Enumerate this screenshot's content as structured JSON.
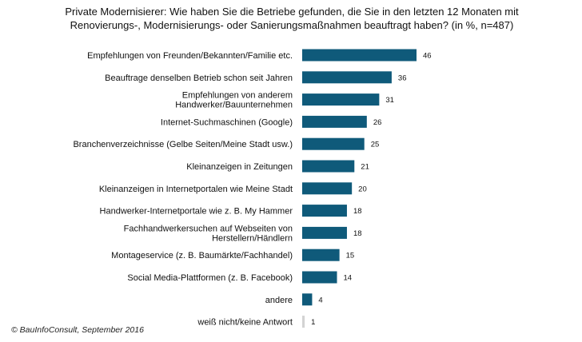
{
  "chart_data": {
    "type": "bar",
    "orientation": "horizontal",
    "title_lines": [
      "Private Modernisierer:  Wie haben  Sie die Betriebe gefunden,  die Sie in den letzten  12 Monaten mit",
      "Renovierungs-,  Modernisierungs-  oder Sanierungsmaßnahmen  beauftragt haben? (in %, n=487)"
    ],
    "categories": [
      [
        "Empfehlungen von Freunden/Bekannten/Familie etc."
      ],
      [
        "Beauftrage denselben Betrieb schon seit Jahren"
      ],
      [
        "Empfehlungen von anderem",
        "Handwerker/Bauunternehmen"
      ],
      [
        "Internet-Suchmaschinen (Google)"
      ],
      [
        "Branchenverzeichnisse (Gelbe Seiten/Meine Stadt usw.)"
      ],
      [
        "Kleinanzeigen in Zeitungen"
      ],
      [
        "Kleinanzeigen in Internetportalen wie Meine Stadt"
      ],
      [
        "Handwerker-Internetportale wie z. B. My Hammer"
      ],
      [
        "Fachhandwerkersuchen auf Webseiten von",
        "Herstellern/Händlern"
      ],
      [
        "Montageservice (z. B. Baumärkte/Fachhandel)"
      ],
      [
        "Social Media-Plattformen (z. B. Facebook)"
      ],
      [
        "andere"
      ],
      [
        "weiß nicht/keine Antwort"
      ]
    ],
    "values": [
      46,
      36,
      31,
      26,
      25,
      21,
      20,
      18,
      18,
      15,
      14,
      4,
      1
    ],
    "colors": {
      "bar": "#0f5a7a",
      "no_answer_bar": "#d3d3d3"
    },
    "xlim": [
      0,
      46
    ],
    "grid": false,
    "legend": "none",
    "data_labels": true
  },
  "footer": {
    "source": "© BauInfoConsult, September 2016"
  }
}
